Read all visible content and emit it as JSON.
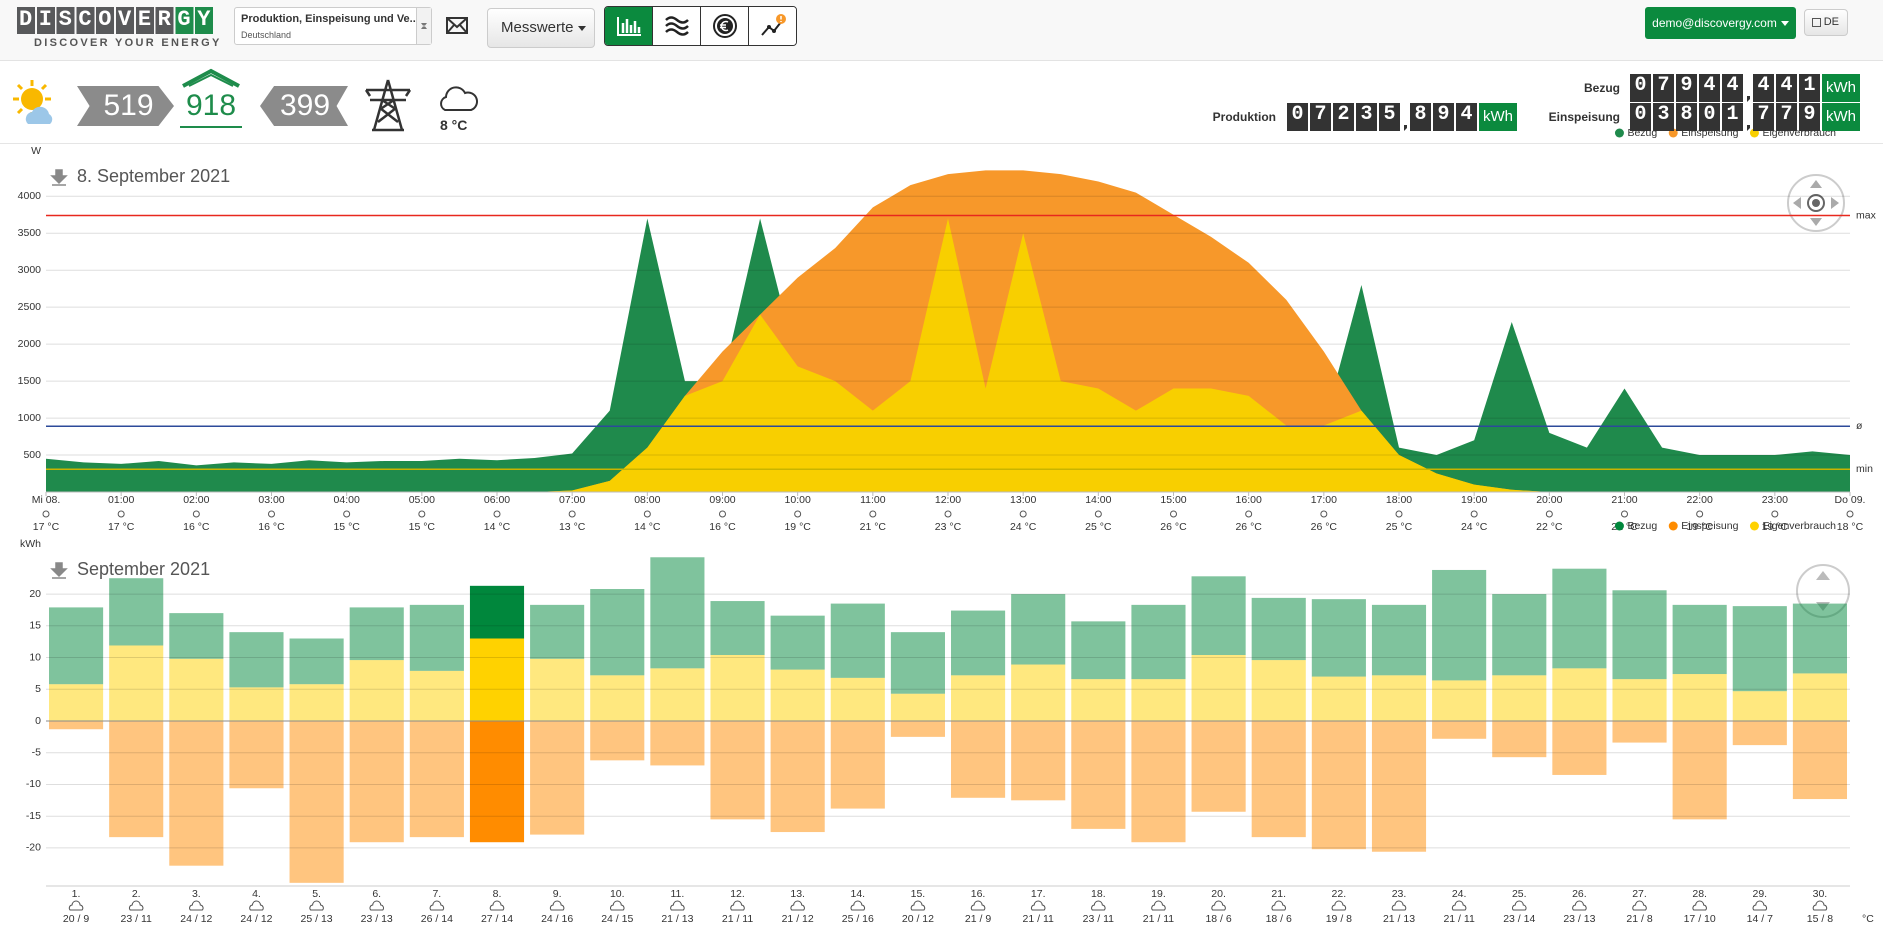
{
  "header": {
    "logo": "DISCOVERGY",
    "tagline": "DISCOVER YOUR ENERGY",
    "meter_select": {
      "title": "Produktion, Einspeisung und Ve...",
      "subtitle": "Deutschland"
    },
    "menu": "Messwerte",
    "user": "demo@discovergy.com",
    "language": "DE"
  },
  "status": {
    "sun": 519,
    "house": 918,
    "grid": 399,
    "temperature": "8 °C"
  },
  "meters": {
    "produktion": {
      "label": "Produktion",
      "integer": "07235",
      "decimal": "894",
      "unit": "kWh"
    },
    "bezug": {
      "label": "Bezug",
      "integer": "07944",
      "decimal": "441",
      "unit": "kWh"
    },
    "einspeisung": {
      "label": "Einspeisung",
      "integer": "03801",
      "decimal": "779",
      "unit": "kWh"
    }
  },
  "chart_data": [
    {
      "type": "area",
      "title": "8. September 2021",
      "y_label": "W",
      "x": [
        0,
        0.5,
        1,
        1.5,
        2,
        2.5,
        3,
        3.5,
        4,
        4.5,
        5,
        5.5,
        6,
        6.5,
        7,
        7.5,
        8,
        8.5,
        9,
        9.5,
        10,
        10.5,
        11,
        11.5,
        12,
        12.5,
        13,
        13.5,
        14,
        14.5,
        15,
        15.5,
        16,
        16.5,
        17,
        17.5,
        18,
        18.5,
        19,
        19.5,
        20,
        20.5,
        21,
        21.5,
        22,
        22.5,
        23,
        23.5,
        24
      ],
      "xlim": [
        0,
        24
      ],
      "xticks": [
        {
          "value": 0,
          "label": "Mi 08."
        },
        {
          "value": 1,
          "label": "01:00"
        },
        {
          "value": 2,
          "label": "02:00"
        },
        {
          "value": 3,
          "label": "03:00"
        },
        {
          "value": 4,
          "label": "04:00"
        },
        {
          "value": 5,
          "label": "05:00"
        },
        {
          "value": 6,
          "label": "06:00"
        },
        {
          "value": 7,
          "label": "07:00"
        },
        {
          "value": 8,
          "label": "08:00"
        },
        {
          "value": 9,
          "label": "09:00"
        },
        {
          "value": 10,
          "label": "10:00"
        },
        {
          "value": 11,
          "label": "11:00"
        },
        {
          "value": 12,
          "label": "12:00"
        },
        {
          "value": 13,
          "label": "13:00"
        },
        {
          "value": 14,
          "label": "14:00"
        },
        {
          "value": 15,
          "label": "15:00"
        },
        {
          "value": 16,
          "label": "16:00"
        },
        {
          "value": 17,
          "label": "17:00"
        },
        {
          "value": 18,
          "label": "18:00"
        },
        {
          "value": 19,
          "label": "19:00"
        },
        {
          "value": 20,
          "label": "20:00"
        },
        {
          "value": 21,
          "label": "21:00"
        },
        {
          "value": 22,
          "label": "22:00"
        },
        {
          "value": 23,
          "label": "23:00"
        },
        {
          "value": 24,
          "label": "Do 09."
        }
      ],
      "tick_temperatures": [
        "17 °C",
        "17 °C",
        "16 °C",
        "16 °C",
        "15 °C",
        "15 °C",
        "14 °C",
        "13 °C",
        "14 °C",
        "16 °C",
        "19 °C",
        "21 °C",
        "23 °C",
        "24 °C",
        "25 °C",
        "26 °C",
        "26 °C",
        "26 °C",
        "25 °C",
        "24 °C",
        "22 °C",
        "21 °C",
        "19 °C",
        "19 °C",
        "18 °C"
      ],
      "ylim": [
        0,
        4450
      ],
      "yticks": [
        500,
        1000,
        1500,
        2000,
        2500,
        3000,
        3500,
        4000
      ],
      "grid": true,
      "legend": "top-right",
      "series": [
        {
          "name": "Bezug",
          "color": "#1f8a4c",
          "values": [
            450,
            400,
            380,
            420,
            360,
            400,
            380,
            430,
            400,
            420,
            420,
            450,
            430,
            460,
            520,
            1100,
            3700,
            1500,
            1500,
            3700,
            1700,
            1500,
            1100,
            1500,
            3700,
            1400,
            3500,
            1500,
            1400,
            1100,
            1400,
            1400,
            1300,
            900,
            900,
            2800,
            600,
            500,
            700,
            2300,
            800,
            600,
            1400,
            600,
            500,
            500,
            500,
            550,
            500
          ]
        },
        {
          "name": "Einspeisung",
          "color": "#f7982a",
          "values": [
            0,
            0,
            0,
            0,
            0,
            0,
            0,
            0,
            0,
            0,
            0,
            0,
            0,
            0,
            20,
            150,
            600,
            1300,
            1900,
            2400,
            2900,
            3300,
            3850,
            4150,
            4300,
            4350,
            4350,
            4300,
            4200,
            4050,
            3750,
            3450,
            3100,
            2600,
            1900,
            1100,
            500,
            250,
            100,
            30,
            0,
            0,
            0,
            0,
            0,
            0,
            0,
            0,
            0
          ]
        },
        {
          "name": "Eigenverbrauch",
          "color": "#f8cf00",
          "values": [
            0,
            0,
            0,
            0,
            0,
            0,
            0,
            0,
            0,
            0,
            0,
            0,
            0,
            0,
            20,
            150,
            600,
            1300,
            1500,
            2400,
            1700,
            1500,
            1100,
            1500,
            3700,
            1400,
            3500,
            1500,
            1400,
            1100,
            1400,
            1400,
            1300,
            900,
            900,
            1100,
            500,
            250,
            100,
            30,
            0,
            0,
            0,
            0,
            0,
            0,
            0,
            0,
            0
          ]
        }
      ],
      "reference_lines": [
        {
          "label": "max",
          "value": 3740,
          "color": "#e8281e"
        },
        {
          "label": "ø",
          "value": 890,
          "color": "#2c4a9a"
        },
        {
          "label": "min",
          "value": 307,
          "color": "#c8b400"
        }
      ]
    },
    {
      "type": "stacked-bar",
      "title": "September 2021",
      "y_label": "kWh",
      "x_unit": "°C",
      "categories": [
        "1.",
        "2.",
        "3.",
        "4.",
        "5.",
        "6.",
        "7.",
        "8.",
        "9.",
        "10.",
        "11.",
        "12.",
        "13.",
        "14.",
        "15.",
        "16.",
        "17.",
        "18.",
        "19.",
        "20.",
        "21.",
        "22.",
        "23.",
        "24.",
        "25.",
        "26.",
        "27.",
        "28.",
        "29.",
        "30."
      ],
      "category_colors": [
        "#333333",
        "#333333",
        "#333333",
        "#e0201b",
        "#e0201b",
        "#333333",
        "#333333",
        "#333333",
        "#333333",
        "#333333",
        "#e0201b",
        "#e0201b",
        "#333333",
        "#333333",
        "#333333",
        "#333333",
        "#333333",
        "#e0201b",
        "#e0201b",
        "#333333",
        "#333333",
        "#333333",
        "#333333",
        "#333333",
        "#e0201b",
        "#e0201b",
        "#333333",
        "#333333",
        "#333333",
        "#333333"
      ],
      "weather": [
        "20 / 9",
        "23 / 11",
        "24 / 12",
        "24 / 12",
        "25 / 13",
        "23 / 13",
        "26 / 14",
        "27 / 14",
        "24 / 16",
        "24 / 15",
        "21 / 13",
        "21 / 11",
        "21 / 12",
        "25 / 16",
        "20 / 12",
        "21 / 9",
        "21 / 11",
        "23 / 11",
        "21 / 11",
        "18 / 6",
        "18 / 6",
        "19 / 8",
        "21 / 13",
        "21 / 11",
        "23 / 14",
        "23 / 13",
        "21 / 8",
        "17 / 10",
        "14 / 7",
        "15 / 8"
      ],
      "ylim": [
        -26,
        26
      ],
      "yticks": [
        -20,
        -15,
        -10,
        -5,
        0,
        5,
        10,
        15,
        20
      ],
      "grid": true,
      "legend": "top-right",
      "highlight_index": 7,
      "series": [
        {
          "name": "Bezug",
          "color": "#00873c",
          "values": [
            12.1,
            10.6,
            7.2,
            8.7,
            7.2,
            8.3,
            10.4,
            8.3,
            8.5,
            13.6,
            17.5,
            8.5,
            8.5,
            11.7,
            9.7,
            10.2,
            11.1,
            9.1,
            11.7,
            12.4,
            9.8,
            12.2,
            11.1,
            17.4,
            12.8,
            15.7,
            14.0,
            10.9,
            13.4,
            11.0
          ]
        },
        {
          "name": "Einspeisung",
          "color": "#ff8c00",
          "values": [
            -1.3,
            -18.3,
            -22.8,
            -10.6,
            -25.5,
            -19.1,
            -18.3,
            -19.1,
            -17.9,
            -6.2,
            -7.0,
            -15.5,
            -17.5,
            -13.8,
            -2.5,
            -12.1,
            -12.5,
            -17.0,
            -19.1,
            -14.3,
            -18.3,
            -20.2,
            -20.6,
            -2.8,
            -5.7,
            -8.5,
            -3.4,
            -15.5,
            -3.8,
            -12.3
          ]
        },
        {
          "name": "Eigenverbrauch",
          "color": "#ffd200",
          "values": [
            5.8,
            11.9,
            9.8,
            5.3,
            5.8,
            9.6,
            7.9,
            13.0,
            9.8,
            7.2,
            8.3,
            10.4,
            8.1,
            6.8,
            4.3,
            7.2,
            8.9,
            6.6,
            6.6,
            10.4,
            9.6,
            7.0,
            7.2,
            6.4,
            7.2,
            8.3,
            6.6,
            7.4,
            4.7,
            7.5
          ]
        }
      ]
    }
  ]
}
